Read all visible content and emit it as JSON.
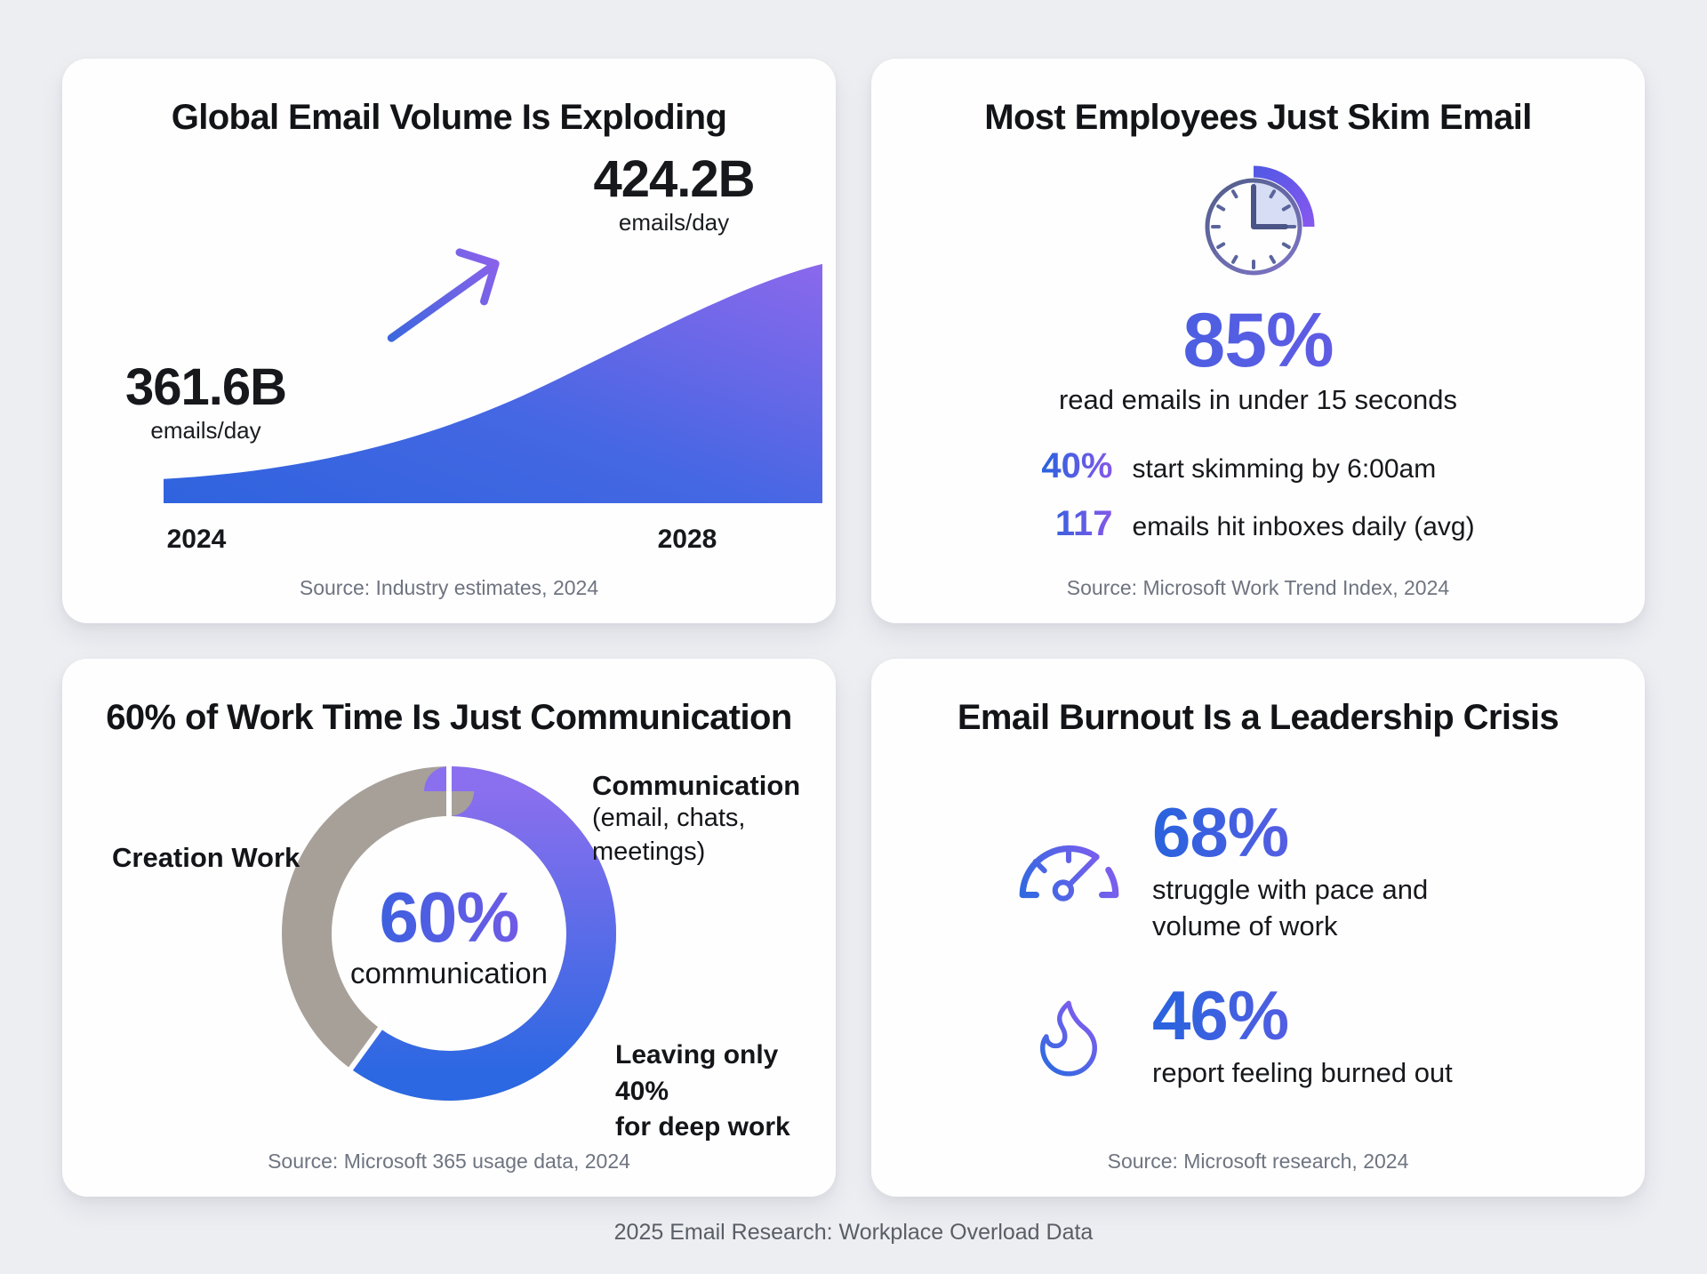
{
  "footer": "2025 Email Research: Workplace Overload Data",
  "colors": {
    "accent_blue": "#2c62de",
    "accent_purple": "#8059e8",
    "donut_gray": "#a7a099",
    "background": "#edeef2"
  },
  "cards": {
    "volume": {
      "title": "Global Email Volume Is Exploding",
      "start_value": "361.6B",
      "start_unit": "emails/day",
      "end_value": "424.2B",
      "end_unit": "emails/day",
      "year_start": "2024",
      "year_end": "2028",
      "source": "Source: Industry estimates, 2024"
    },
    "skim": {
      "title": "Most Employees Just Skim Email",
      "headline_value": "85%",
      "headline_label": "read emails in under 15 seconds",
      "stats": [
        {
          "value": "40%",
          "label": "start skimming by 6:00am"
        },
        {
          "value": "117",
          "label": "emails hit inboxes daily (avg)"
        }
      ],
      "source": "Source: Microsoft Work Trend Index, 2024"
    },
    "communication": {
      "title": "60% of Work Time Is Just Communication",
      "center_value": "60%",
      "center_label": "communication",
      "label_creation": "Creation Work",
      "label_comm_title": "Communication",
      "label_comm_sub": "(email, chats, meetings)",
      "label_deep_work": "Leaving only 40%\nfor deep work",
      "source": "Source: Microsoft 365 usage data, 2024"
    },
    "burnout": {
      "title": "Email Burnout Is a Leadership Crisis",
      "stats": [
        {
          "icon": "gauge-icon",
          "value": "68%",
          "label": "struggle with pace and\nvolume of work"
        },
        {
          "icon": "flame-icon",
          "value": "46%",
          "label": "report feeling burned out"
        }
      ],
      "source": "Source: Microsoft research, 2024"
    }
  },
  "chart_data": [
    {
      "type": "area",
      "title": "Global Email Volume Is Exploding",
      "x": [
        2024,
        2028
      ],
      "values": [
        361.6,
        424.2
      ],
      "unit": "billion emails/day",
      "shape": "convex accelerating growth curve",
      "xlabel": "",
      "ylabel": "",
      "grid": false,
      "legend": "none",
      "annotations": [
        "361.6B emails/day (2024)",
        "424.2B emails/day (2028)",
        "upward growth arrow"
      ],
      "source": "Source: Industry estimates, 2024"
    },
    {
      "type": "pie",
      "subtype": "donut",
      "title": "60% of Work Time Is Just Communication",
      "categories": [
        "Communication (email, chats, meetings)",
        "Creation Work"
      ],
      "values": [
        60,
        40
      ],
      "colors": [
        "blue-purple gradient",
        "#a7a099"
      ],
      "start_angle_deg": 0,
      "direction": "clockwise",
      "center_value": "60%",
      "center_label": "communication",
      "annotations": [
        "Leaving only 40% for deep work"
      ],
      "legend": "labels beside chart",
      "source": "Source: Microsoft 365 usage data, 2024"
    }
  ]
}
